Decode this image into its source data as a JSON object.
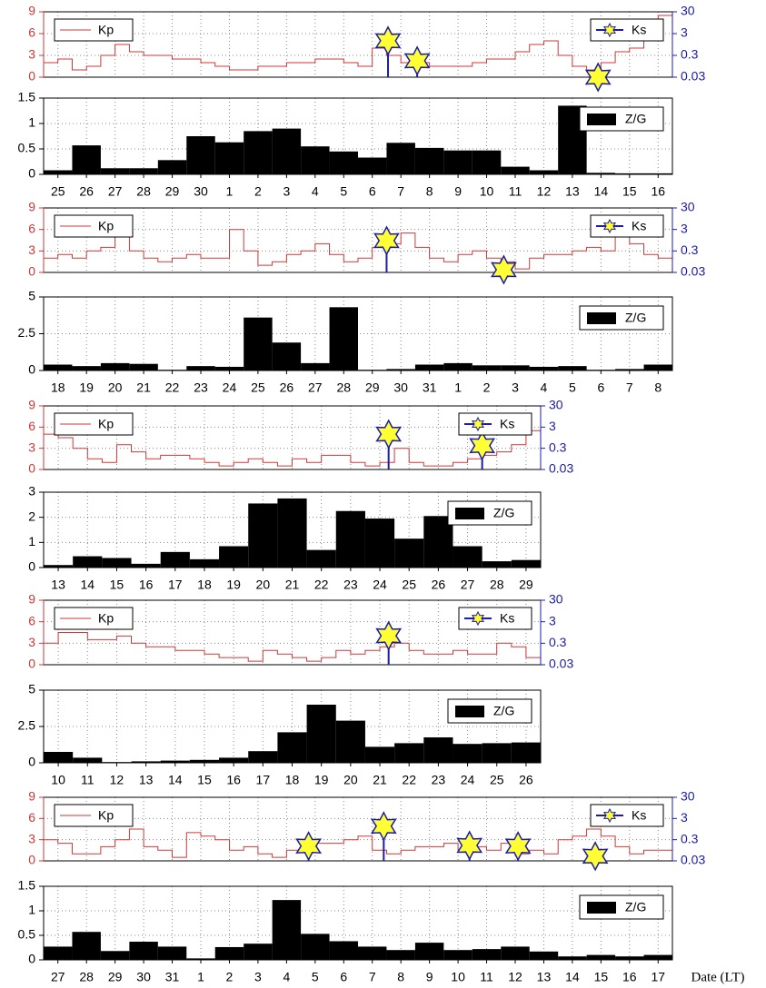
{
  "chart_data": [
    {
      "type": "line",
      "xlim": [
        0,
        22
      ],
      "ylim": [
        0,
        9
      ],
      "yticks": [
        0,
        3,
        6,
        9
      ],
      "y2lim": [
        0.03,
        30
      ],
      "y2ticks": [
        0.03,
        0.3,
        3,
        30
      ],
      "y2log": true,
      "grid": true,
      "series": [
        {
          "name": "Kp",
          "color": "#cc3a3a",
          "legend": "upper left",
          "x": [
            0,
            0.5,
            1,
            1.5,
            2,
            2.5,
            3,
            3.5,
            4,
            4.5,
            5,
            5.5,
            6,
            6.5,
            7,
            7.5,
            8,
            8.5,
            9,
            9.5,
            10,
            10.5,
            11,
            11.5,
            12,
            12.5,
            13,
            13.5,
            14,
            14.5,
            15,
            15.5,
            16,
            16.5,
            17,
            17.5,
            18,
            18.5,
            19,
            19.5,
            20,
            20.5,
            21,
            21.5
          ],
          "values": [
            2,
            2.5,
            1,
            1.5,
            3,
            4.5,
            3.5,
            3,
            3,
            2.5,
            2.5,
            2,
            1.5,
            1,
            1,
            1.5,
            1.5,
            2,
            2,
            2.5,
            2.5,
            2,
            1.5,
            4,
            3,
            2,
            2,
            1.5,
            1.5,
            1.5,
            2,
            2.5,
            2.5,
            3.5,
            4.5,
            5,
            3,
            1.5,
            1,
            2,
            3.5,
            4,
            7,
            8.5
          ]
        },
        {
          "name": "Ks",
          "axis": "y2",
          "color": "#ffff33",
          "edgecolor": "#1c1ca8",
          "legend": "upper right",
          "x": [
            12.05,
            13.07,
            19.4
          ],
          "values": [
            1.4,
            0.17,
            0.03
          ]
        }
      ]
    },
    {
      "type": "bar",
      "ylim": [
        0,
        1.5
      ],
      "yticks": [
        0,
        0.5,
        1,
        1.5
      ],
      "grid": true,
      "legend": "upper right",
      "categories": [
        "25",
        "26",
        "27",
        "28",
        "29",
        "30",
        "1",
        "2",
        "3",
        "4",
        "5",
        "6",
        "7",
        "8",
        "9",
        "10",
        "11",
        "12",
        "13",
        "14",
        "15",
        "16"
      ],
      "series": [
        {
          "name": "Z/G",
          "color": "#000000",
          "values": [
            0.08,
            0.57,
            0.12,
            0.12,
            0.28,
            0.75,
            0.63,
            0.85,
            0.9,
            0.55,
            0.45,
            0.33,
            0.62,
            0.52,
            0.47,
            0.47,
            0.15,
            0.08,
            1.35,
            0.03,
            0.02,
            0.02
          ]
        }
      ]
    },
    {
      "type": "line",
      "xlim": [
        0,
        22
      ],
      "ylim": [
        0,
        9
      ],
      "yticks": [
        0,
        3,
        6,
        9
      ],
      "y2lim": [
        0.03,
        30
      ],
      "y2ticks": [
        0.03,
        0.3,
        3,
        30
      ],
      "y2log": true,
      "grid": true,
      "series": [
        {
          "name": "Kp",
          "color": "#cc3a3a",
          "legend": "upper left",
          "x": [
            0,
            0.5,
            1,
            1.5,
            2,
            2.5,
            3,
            3.5,
            4,
            4.5,
            5,
            5.5,
            6,
            6.5,
            7,
            7.5,
            8,
            8.5,
            9,
            9.5,
            10,
            10.5,
            11,
            11.5,
            12,
            12.5,
            13,
            13.5,
            14,
            14.5,
            15,
            15.5,
            16,
            16.5,
            17,
            17.5,
            18,
            18.5,
            19,
            19.5,
            20,
            20.5,
            21,
            21.5
          ],
          "values": [
            2,
            2.5,
            2,
            3,
            3.5,
            5,
            3,
            2,
            1.5,
            2,
            2.5,
            2,
            2,
            6,
            3,
            1,
            1.5,
            2.5,
            3,
            4,
            2.5,
            1.5,
            2,
            3.5,
            4,
            5.5,
            3.5,
            2,
            1.5,
            2.5,
            3,
            2,
            1.5,
            0.5,
            2,
            2.5,
            2.5,
            3,
            3.5,
            3,
            5,
            4,
            2.5,
            2
          ]
        },
        {
          "name": "Ks",
          "axis": "y2",
          "color": "#ffff33",
          "edgecolor": "#1c1ca8",
          "legend": "upper right",
          "x": [
            12.0,
            16.1
          ],
          "values": [
            0.9,
            0.04
          ]
        }
      ]
    },
    {
      "type": "bar",
      "ylim": [
        0,
        5
      ],
      "yticks": [
        0,
        2.5,
        5
      ],
      "grid": true,
      "legend": "upper right",
      "categories": [
        "18",
        "19",
        "20",
        "21",
        "22",
        "23",
        "24",
        "25",
        "26",
        "27",
        "28",
        "29",
        "30",
        "31",
        "1",
        "2",
        "3",
        "4",
        "5",
        "6",
        "7",
        "8"
      ],
      "series": [
        {
          "name": "Z/G",
          "color": "#000000",
          "values": [
            0.4,
            0.3,
            0.5,
            0.45,
            0.05,
            0.3,
            0.25,
            3.6,
            1.9,
            0.5,
            4.3,
            0.05,
            0.1,
            0.4,
            0.5,
            0.35,
            0.35,
            0.25,
            0.3,
            0.05,
            0.1,
            0.4
          ]
        }
      ]
    },
    {
      "type": "line",
      "xlim": [
        0,
        17
      ],
      "ylim": [
        0,
        9
      ],
      "yticks": [
        0,
        3,
        6,
        9
      ],
      "y2lim": [
        0.03,
        30
      ],
      "y2ticks": [
        0.03,
        0.3,
        3,
        30
      ],
      "y2log": true,
      "grid": true,
      "series": [
        {
          "name": "Kp",
          "color": "#cc3a3a",
          "legend": "upper left",
          "x": [
            0,
            0.5,
            1,
            1.5,
            2,
            2.5,
            3,
            3.5,
            4,
            4.5,
            5,
            5.5,
            6,
            6.5,
            7,
            7.5,
            8,
            8.5,
            9,
            9.5,
            10,
            10.5,
            11,
            11.5,
            12,
            12.5,
            13,
            13.5,
            14,
            14.5,
            15,
            15.5,
            16,
            16.5
          ],
          "values": [
            5,
            4.5,
            3,
            1.5,
            1,
            3.5,
            2.5,
            1.5,
            2,
            2,
            1.5,
            1,
            0.5,
            1,
            1.5,
            1,
            0.5,
            1.5,
            1,
            2,
            2,
            1,
            0.5,
            1,
            3,
            1,
            0.5,
            0.5,
            1,
            1.5,
            2,
            2.5,
            3.5,
            5.5
          ]
        },
        {
          "name": "Ks",
          "axis": "y2",
          "color": "#ffff33",
          "edgecolor": "#1c1ca8",
          "legend": "upper right",
          "x": [
            11.8,
            15.0
          ],
          "values": [
            1.4,
            0.4
          ]
        }
      ]
    },
    {
      "type": "bar",
      "ylim": [
        0,
        3
      ],
      "yticks": [
        0,
        1,
        2,
        3
      ],
      "grid": true,
      "legend": "upper right",
      "categories": [
        "13",
        "14",
        "15",
        "16",
        "17",
        "18",
        "19",
        "20",
        "21",
        "22",
        "23",
        "24",
        "25",
        "26",
        "27",
        "28",
        "29"
      ],
      "series": [
        {
          "name": "Z/G",
          "color": "#000000",
          "values": [
            0.1,
            0.45,
            0.38,
            0.15,
            0.62,
            0.33,
            0.85,
            2.55,
            2.75,
            0.7,
            2.25,
            1.95,
            1.15,
            2.05,
            0.85,
            0.25,
            0.3
          ]
        }
      ]
    },
    {
      "type": "line",
      "xlim": [
        0,
        17
      ],
      "ylim": [
        0,
        9
      ],
      "yticks": [
        0,
        3,
        6,
        9
      ],
      "y2lim": [
        0.03,
        30
      ],
      "y2ticks": [
        0.03,
        0.3,
        3,
        30
      ],
      "y2log": true,
      "grid": true,
      "series": [
        {
          "name": "Kp",
          "color": "#cc3a3a",
          "legend": "upper left",
          "x": [
            0,
            0.5,
            1,
            1.5,
            2,
            2.5,
            3,
            3.5,
            4,
            4.5,
            5,
            5.5,
            6,
            6.5,
            7,
            7.5,
            8,
            8.5,
            9,
            9.5,
            10,
            10.5,
            11,
            11.5,
            12,
            12.5,
            13,
            13.5,
            14,
            14.5,
            15,
            15.5,
            16,
            16.5
          ],
          "values": [
            3,
            4.5,
            4.5,
            3.5,
            3.5,
            4,
            3,
            2.5,
            2.5,
            2,
            2,
            1.5,
            1,
            1,
            0.5,
            2,
            1.5,
            1,
            0.5,
            1,
            2,
            1.5,
            2,
            2.5,
            3,
            2,
            1.5,
            1.5,
            2,
            1.5,
            1.5,
            3,
            2.5,
            1
          ]
        },
        {
          "name": "Ks",
          "axis": "y2",
          "color": "#ffff33",
          "edgecolor": "#1c1ca8",
          "legend": "upper right",
          "x": [
            11.8
          ],
          "values": [
            0.67
          ]
        }
      ]
    },
    {
      "type": "bar",
      "ylim": [
        0,
        5
      ],
      "yticks": [
        0,
        2.5,
        5
      ],
      "grid": true,
      "legend": "upper right",
      "categories": [
        "10",
        "11",
        "12",
        "13",
        "14",
        "15",
        "16",
        "17",
        "18",
        "19",
        "20",
        "21",
        "22",
        "23",
        "24",
        "25",
        "26"
      ],
      "series": [
        {
          "name": "Z/G",
          "color": "#000000",
          "values": [
            0.75,
            0.35,
            0.05,
            0.1,
            0.15,
            0.2,
            0.35,
            0.8,
            2.1,
            4.0,
            2.9,
            1.1,
            1.35,
            1.75,
            1.3,
            1.35,
            1.4
          ]
        }
      ]
    },
    {
      "type": "line",
      "xlim": [
        0,
        22
      ],
      "ylim": [
        0,
        9
      ],
      "yticks": [
        0,
        3,
        6,
        9
      ],
      "y2lim": [
        0.03,
        30
      ],
      "y2ticks": [
        0.03,
        0.3,
        3,
        30
      ],
      "y2log": true,
      "grid": true,
      "series": [
        {
          "name": "Kp",
          "color": "#cc3a3a",
          "legend": "upper left",
          "x": [
            0,
            0.5,
            1,
            1.5,
            2,
            2.5,
            3,
            3.5,
            4,
            4.5,
            5,
            5.5,
            6,
            6.5,
            7,
            7.5,
            8,
            8.5,
            9,
            9.5,
            10,
            10.5,
            11,
            11.5,
            12,
            12.5,
            13,
            13.5,
            14,
            14.5,
            15,
            15.5,
            16,
            16.5,
            17,
            17.5,
            18,
            18.5,
            19,
            19.5,
            20,
            20.5,
            21,
            21.5
          ],
          "values": [
            3,
            2.5,
            1,
            1,
            2,
            3,
            4.5,
            2,
            1.5,
            0.5,
            4,
            3.5,
            3,
            1.5,
            2,
            1,
            0.5,
            1.5,
            1.5,
            2.5,
            2.5,
            3,
            3.5,
            1.5,
            1,
            1.5,
            2,
            2,
            2.5,
            1.5,
            2,
            1.5,
            2.5,
            1,
            1.5,
            1,
            3,
            3.5,
            4.5,
            3.5,
            2,
            1,
            1.5,
            1.5
          ]
        },
        {
          "name": "Ks",
          "axis": "y2",
          "color": "#ffff33",
          "edgecolor": "#1c1ca8",
          "legend": "upper right",
          "x": [
            9.27,
            11.9,
            14.9,
            16.6,
            19.3
          ],
          "values": [
            0.15,
            1.3,
            0.16,
            0.15,
            0.05
          ]
        }
      ]
    },
    {
      "type": "bar",
      "ylim": [
        0,
        1.5
      ],
      "yticks": [
        0,
        0.5,
        1,
        1.5
      ],
      "grid": true,
      "legend": "upper right",
      "xlabel": "Date (LT)",
      "categories": [
        "27",
        "28",
        "29",
        "30",
        "31",
        "1",
        "2",
        "3",
        "4",
        "5",
        "6",
        "7",
        "8",
        "9",
        "10",
        "11",
        "12",
        "13",
        "14",
        "15",
        "16",
        "17"
      ],
      "series": [
        {
          "name": "Z/G",
          "color": "#000000",
          "values": [
            0.27,
            0.57,
            0.18,
            0.37,
            0.27,
            0.03,
            0.26,
            0.33,
            1.22,
            0.53,
            0.38,
            0.27,
            0.2,
            0.35,
            0.2,
            0.22,
            0.27,
            0.17,
            0.07,
            0.1,
            0.07,
            0.1
          ]
        }
      ]
    }
  ]
}
